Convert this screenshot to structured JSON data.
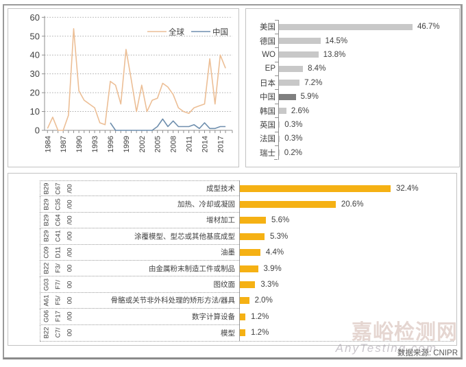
{
  "caption": {
    "label": "数据来源: CNIPR"
  },
  "watermark": {
    "cn": "嘉峪检测网",
    "en": "AnyTesting.com"
  },
  "colors": {
    "global_line": "#ECBE95",
    "china_line": "#6E8EAD",
    "axis": "#8f8f8f",
    "grid": "#a8a8a8",
    "gray_bar": "#C8C8C8",
    "gray_bar_highlight": "#7F7F7F",
    "gold_bar": "#F5B114",
    "text": "#3f3f3f"
  },
  "chart_data": [
    {
      "id": "annual-trend",
      "type": "line",
      "title": "",
      "xlabel": "",
      "ylabel": "",
      "ylim": [
        0,
        60
      ],
      "y_ticks": [
        0,
        10,
        20,
        30,
        40,
        50,
        60
      ],
      "grid": "horizontal-dotted",
      "legend_position": "top-right",
      "x": [
        1984,
        1985,
        1986,
        1987,
        1988,
        1989,
        1990,
        1991,
        1992,
        1993,
        1994,
        1995,
        1996,
        1997,
        1998,
        1999,
        2000,
        2001,
        2002,
        2003,
        2004,
        2005,
        2006,
        2007,
        2008,
        2009,
        2010,
        2011,
        2012,
        2013,
        2014,
        2015,
        2016,
        2017,
        2018
      ],
      "x_tick_labels": [
        "1984",
        "1987",
        "1990",
        "1993",
        "1996",
        "1999",
        "2002",
        "2005",
        "2008",
        "2011",
        "2014",
        "2017"
      ],
      "series": [
        {
          "name": "全球",
          "color": "#ECBE95",
          "values": [
            1,
            7,
            0,
            0,
            8,
            54,
            21,
            16,
            14,
            12,
            4,
            3,
            26,
            24,
            14,
            43,
            27,
            10,
            24,
            10,
            16,
            17,
            25,
            23,
            19,
            12,
            10,
            9,
            12,
            13,
            14,
            38,
            14,
            40,
            33
          ]
        },
        {
          "name": "中国",
          "color": "#6E8EAD",
          "values": [
            null,
            null,
            null,
            null,
            null,
            null,
            null,
            null,
            null,
            null,
            null,
            null,
            4,
            0,
            0,
            0,
            0,
            0,
            0,
            0,
            0,
            2,
            6,
            2,
            5,
            2,
            2,
            2,
            3,
            1,
            4,
            1,
            1,
            2,
            2
          ]
        }
      ]
    },
    {
      "id": "country-share",
      "type": "bar",
      "orientation": "horizontal",
      "title": "",
      "categories": [
        "美国",
        "德国",
        "WO",
        "EP",
        "日本",
        "中国",
        "韩国",
        "英国",
        "法国",
        "瑞士"
      ],
      "values": [
        46.7,
        14.5,
        13.8,
        8.4,
        7.2,
        5.9,
        2.6,
        0.3,
        0.3,
        0.2
      ],
      "value_labels": [
        "46.7%",
        "14.5%",
        "13.8%",
        "8.4%",
        "7.2%",
        "5.9%",
        "2.6%",
        "0.3%",
        "0.3%",
        "0.2%"
      ],
      "highlight_category": "中国",
      "xlim": [
        0,
        55
      ]
    },
    {
      "id": "ipc-distribution",
      "type": "bar",
      "orientation": "horizontal",
      "title": "",
      "xlim": [
        0,
        36
      ],
      "rows": [
        {
          "code": [
            "B29",
            "C67",
            "/00"
          ],
          "label": "成型技术",
          "value": 32.4,
          "display": "32.4%"
        },
        {
          "code": [
            "B29",
            "C35",
            "/00"
          ],
          "label": "加热、冷却或凝固",
          "value": 20.6,
          "display": "20.6%"
        },
        {
          "code": [
            "B29",
            "C64",
            "/00"
          ],
          "label": "增材加工",
          "value": 5.6,
          "display": "5.6%"
        },
        {
          "code": [
            "B29",
            "C41",
            "/00"
          ],
          "label": "涂覆模型、型芯或其他基底成型",
          "value": 5.3,
          "display": "5.3%"
        },
        {
          "code": [
            "C09",
            "D11",
            "/00"
          ],
          "label": "油墨",
          "value": 4.4,
          "display": "4.4%"
        },
        {
          "code": [
            "B22",
            "F3/",
            "00"
          ],
          "label": "由金属粉末制造工件或制品",
          "value": 3.9,
          "display": "3.9%"
        },
        {
          "code": [
            "G03",
            "F7/",
            "00"
          ],
          "label": "图纹面",
          "value": 3.3,
          "display": "3.3%"
        },
        {
          "code": [
            "A61",
            "F5/",
            "00"
          ],
          "label": "骨骼或关节非外科处理的矫形方法/器具",
          "value": 2.0,
          "display": "2.0%"
        },
        {
          "code": [
            "G06",
            "F17",
            "/00"
          ],
          "label": "数字计算设备",
          "value": 1.2,
          "display": "1.2%"
        },
        {
          "code": [
            "B22",
            "C7/",
            "00"
          ],
          "label": "模型",
          "value": 1.2,
          "display": "1.2%"
        }
      ]
    }
  ]
}
